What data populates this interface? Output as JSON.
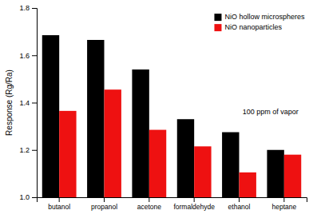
{
  "chart_data": {
    "type": "bar",
    "categories": [
      "butanol",
      "propanol",
      "acetone",
      "formaldehyde",
      "ethanol",
      "heptane"
    ],
    "series": [
      {
        "name": "NiO hollow microspheres",
        "color": "#000000",
        "values": [
          1.685,
          1.665,
          1.54,
          1.33,
          1.275,
          1.2
        ]
      },
      {
        "name": "NiO nanoparticles",
        "color": "#ee1111",
        "values": [
          1.365,
          1.455,
          1.285,
          1.215,
          1.105,
          1.18
        ]
      }
    ],
    "ylabel": "Response (Rg/Ra)",
    "ylim": [
      1.0,
      1.8
    ],
    "yticks": [
      {
        "value": 1.0,
        "label": "1.0"
      },
      {
        "value": 1.2,
        "label": "1.2"
      },
      {
        "value": 1.4,
        "label": "1.4"
      },
      {
        "value": 1.6,
        "label": "1.6"
      },
      {
        "value": 1.8,
        "label": "1.8"
      }
    ],
    "annotation": "100 ppm of vapor",
    "legend": "upper-right",
    "grid": false
  }
}
